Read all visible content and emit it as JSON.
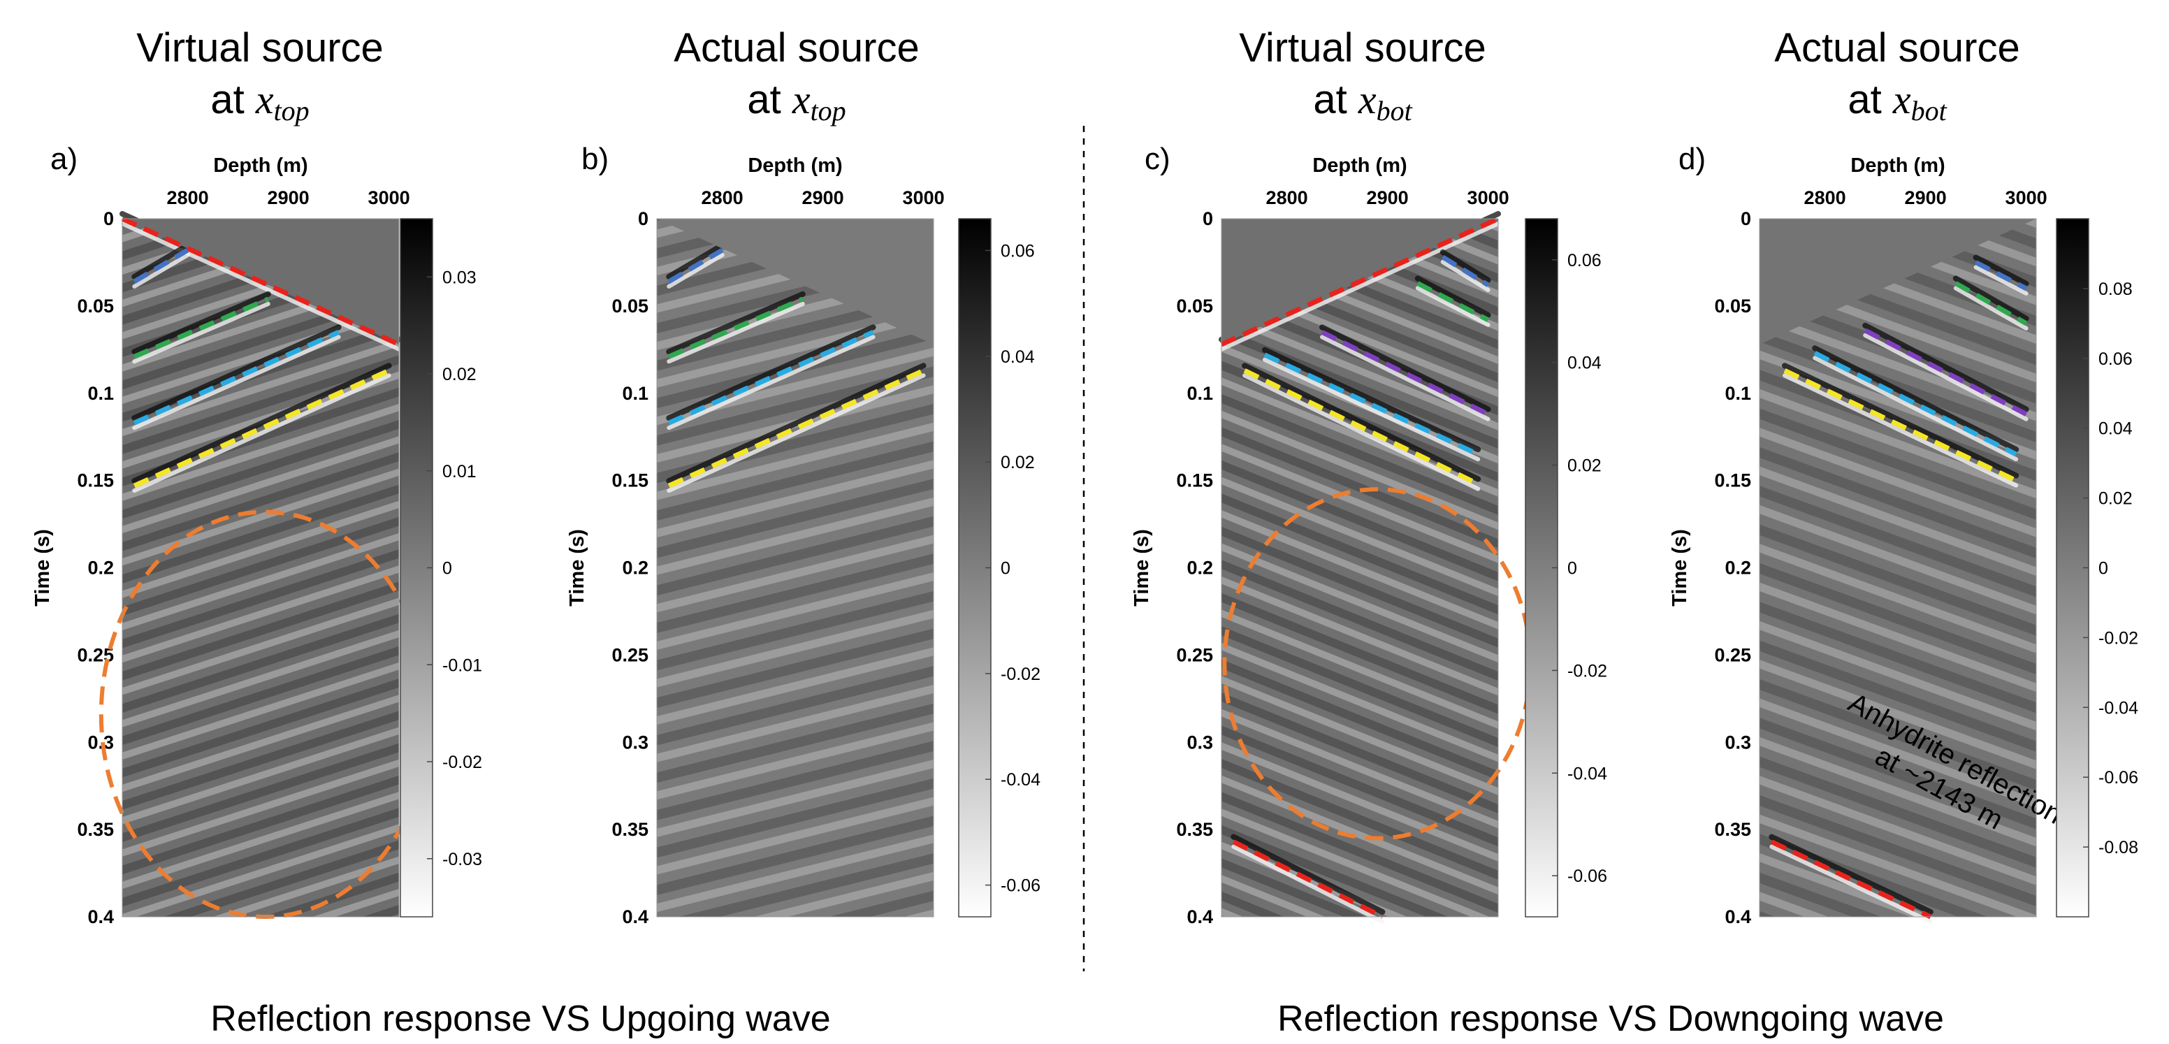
{
  "chart_data": [
    {
      "type": "heatmap",
      "panel_label": "a)",
      "title_line1": "Virtual source",
      "title_at": "at",
      "title_var": "x",
      "title_sub": "top",
      "xlabel": "Depth (m)",
      "ylabel": "Time (s)",
      "x_ticks": [
        2800,
        2900,
        3000
      ],
      "x_tick_labels": [
        "2800",
        "2900",
        "3000"
      ],
      "xlim": [
        2735,
        3010
      ],
      "y_ticks": [
        0,
        0.05,
        0.1,
        0.15,
        0.2,
        0.25,
        0.3,
        0.35,
        0.4
      ],
      "y_tick_labels": [
        "0",
        "0.05",
        "0.1",
        "0.15",
        "0.2",
        "0.25",
        "0.3",
        "0.35",
        "0.4"
      ],
      "ylim": [
        0,
        0.4
      ],
      "colorbar": {
        "range": [
          -0.036,
          0.036
        ],
        "ticks": [
          0.03,
          0.02,
          0.01,
          0,
          -0.01,
          -0.02,
          -0.03
        ],
        "tick_labels": [
          "0.03",
          "0.02",
          "0.01",
          "0",
          "-0.01",
          "-0.02",
          "-0.03"
        ],
        "colormap": "gray (white = negative, black = positive)"
      },
      "annotations": [
        {
          "kind": "dashed-line",
          "color": "#e8231b",
          "from": [
            2735,
            0.0
          ],
          "to": [
            3010,
            0.072
          ]
        },
        {
          "kind": "dashed-line",
          "color": "#4472c4",
          "from": [
            2747,
            0.036
          ],
          "to": [
            2800,
            0.018
          ]
        },
        {
          "kind": "dashed-line",
          "color": "#2fa84f",
          "from": [
            2747,
            0.079
          ],
          "to": [
            2880,
            0.046
          ]
        },
        {
          "kind": "dashed-line",
          "color": "#29abe2",
          "from": [
            2747,
            0.117
          ],
          "to": [
            2950,
            0.065
          ]
        },
        {
          "kind": "dashed-line",
          "color": "#f5e625",
          "from": [
            2747,
            0.153
          ],
          "to": [
            3000,
            0.087
          ]
        },
        {
          "kind": "dashed-ellipse",
          "color": "#ed7d31",
          "center": [
            2877,
            0.284
          ],
          "radius": [
            163,
            0.116
          ]
        }
      ]
    },
    {
      "type": "heatmap",
      "panel_label": "b)",
      "title_line1": "Actual source",
      "title_at": "at",
      "title_var": "x",
      "title_sub": "top",
      "xlabel": "Depth (m)",
      "ylabel": "Time (s)",
      "x_ticks": [
        2800,
        2900,
        3000
      ],
      "x_tick_labels": [
        "2800",
        "2900",
        "3000"
      ],
      "xlim": [
        2735,
        3010
      ],
      "y_ticks": [
        0,
        0.05,
        0.1,
        0.15,
        0.2,
        0.25,
        0.3,
        0.35,
        0.4
      ],
      "y_tick_labels": [
        "0",
        "0.05",
        "0.1",
        "0.15",
        "0.2",
        "0.25",
        "0.3",
        "0.35",
        "0.4"
      ],
      "ylim": [
        0,
        0.4
      ],
      "colorbar": {
        "range": [
          -0.066,
          0.066
        ],
        "ticks": [
          0.06,
          0.04,
          0.02,
          0,
          -0.02,
          -0.04,
          -0.06
        ],
        "tick_labels": [
          "0.06",
          "0.04",
          "0.02",
          "0",
          "-0.02",
          "-0.04",
          "-0.06"
        ],
        "colormap": "gray (white = negative, black = positive)"
      },
      "annotations": [
        {
          "kind": "dashed-line",
          "color": "#4472c4",
          "from": [
            2747,
            0.036
          ],
          "to": [
            2800,
            0.018
          ]
        },
        {
          "kind": "dashed-line",
          "color": "#2fa84f",
          "from": [
            2747,
            0.079
          ],
          "to": [
            2880,
            0.046
          ]
        },
        {
          "kind": "dashed-line",
          "color": "#29abe2",
          "from": [
            2747,
            0.117
          ],
          "to": [
            2950,
            0.065
          ]
        },
        {
          "kind": "dashed-line",
          "color": "#f5e625",
          "from": [
            2747,
            0.153
          ],
          "to": [
            3000,
            0.087
          ]
        }
      ]
    },
    {
      "type": "heatmap",
      "panel_label": "c)",
      "title_line1": "Virtual source",
      "title_at": "at",
      "title_var": "x",
      "title_sub": "bot",
      "xlabel": "Depth (m)",
      "ylabel": "Time (s)",
      "x_ticks": [
        2800,
        2900,
        3000
      ],
      "x_tick_labels": [
        "2800",
        "2900",
        "3000"
      ],
      "xlim": [
        2735,
        3010
      ],
      "y_ticks": [
        0,
        0.05,
        0.1,
        0.15,
        0.2,
        0.25,
        0.3,
        0.35,
        0.4
      ],
      "y_tick_labels": [
        "0",
        "0.05",
        "0.1",
        "0.15",
        "0.2",
        "0.25",
        "0.3",
        "0.35",
        "0.4"
      ],
      "ylim": [
        0,
        0.4
      ],
      "colorbar": {
        "range": [
          -0.068,
          0.068
        ],
        "ticks": [
          0.06,
          0.04,
          0.02,
          0,
          -0.02,
          -0.04,
          -0.06
        ],
        "tick_labels": [
          "0.06",
          "0.04",
          "0.02",
          "0",
          "-0.02",
          "-0.04",
          "-0.06"
        ],
        "colormap": "gray (white = negative, black = positive)"
      },
      "annotations": [
        {
          "kind": "dashed-line",
          "color": "#e8231b",
          "from": [
            2735,
            0.072
          ],
          "to": [
            3010,
            0.0
          ]
        },
        {
          "kind": "dashed-line",
          "color": "#4472c4",
          "from": [
            2955,
            0.022
          ],
          "to": [
            3000,
            0.038
          ]
        },
        {
          "kind": "dashed-line",
          "color": "#2fa84f",
          "from": [
            2930,
            0.037
          ],
          "to": [
            3000,
            0.058
          ]
        },
        {
          "kind": "dashed-line",
          "color": "#7f3fbf",
          "from": [
            2835,
            0.065
          ],
          "to": [
            3000,
            0.112
          ]
        },
        {
          "kind": "dashed-line",
          "color": "#29abe2",
          "from": [
            2778,
            0.078
          ],
          "to": [
            2990,
            0.135
          ]
        },
        {
          "kind": "dashed-line",
          "color": "#f5e625",
          "from": [
            2758,
            0.087
          ],
          "to": [
            2990,
            0.152
          ]
        },
        {
          "kind": "dashed-line",
          "color": "#e8231b",
          "from": [
            2747,
            0.357
          ],
          "to": [
            2895,
            0.4
          ]
        },
        {
          "kind": "dashed-ellipse",
          "color": "#ed7d31",
          "center": [
            2890,
            0.255
          ],
          "radius": [
            152,
            0.1
          ]
        }
      ]
    },
    {
      "type": "heatmap",
      "panel_label": "d)",
      "title_line1": "Actual source",
      "title_at": "at",
      "title_var": "x",
      "title_sub": "bot",
      "xlabel": "Depth (m)",
      "ylabel": "Time (s)",
      "x_ticks": [
        2800,
        2900,
        3000
      ],
      "x_tick_labels": [
        "2800",
        "2900",
        "3000"
      ],
      "xlim": [
        2735,
        3010
      ],
      "y_ticks": [
        0,
        0.05,
        0.1,
        0.15,
        0.2,
        0.25,
        0.3,
        0.35,
        0.4
      ],
      "y_tick_labels": [
        "0",
        "0.05",
        "0.1",
        "0.15",
        "0.2",
        "0.25",
        "0.3",
        "0.35",
        "0.4"
      ],
      "ylim": [
        0,
        0.4
      ],
      "colorbar": {
        "range": [
          -0.1,
          0.1
        ],
        "ticks": [
          0.08,
          0.06,
          0.04,
          0.02,
          0,
          -0.02,
          -0.04,
          -0.06,
          -0.08
        ],
        "tick_labels": [
          "0.08",
          "0.06",
          "0.04",
          "0.02",
          "0",
          "-0.02",
          "-0.04",
          "-0.06",
          "-0.08"
        ],
        "colormap": "gray (white = negative, black = positive)"
      },
      "annotations": [
        {
          "kind": "dashed-line",
          "color": "#4472c4",
          "from": [
            2950,
            0.025
          ],
          "to": [
            3000,
            0.04
          ]
        },
        {
          "kind": "dashed-line",
          "color": "#2fa84f",
          "from": [
            2930,
            0.037
          ],
          "to": [
            3000,
            0.06
          ]
        },
        {
          "kind": "dashed-line",
          "color": "#7f3fbf",
          "from": [
            2840,
            0.064
          ],
          "to": [
            3000,
            0.112
          ]
        },
        {
          "kind": "dashed-line",
          "color": "#29abe2",
          "from": [
            2790,
            0.077
          ],
          "to": [
            2990,
            0.135
          ]
        },
        {
          "kind": "dashed-line",
          "color": "#f5e625",
          "from": [
            2760,
            0.087
          ],
          "to": [
            2990,
            0.15
          ]
        },
        {
          "kind": "dashed-line",
          "color": "#e8231b",
          "from": [
            2747,
            0.357
          ],
          "to": [
            2905,
            0.4
          ]
        },
        {
          "kind": "text",
          "text_lines": [
            "Anhydrite reflection",
            "at ~2143 m"
          ],
          "anchor": [
            2905,
            0.335
          ]
        }
      ]
    }
  ],
  "captions": {
    "left": "Reflection response VS Upgoing wave",
    "right": "Reflection response VS Downgoing wave"
  },
  "colors": {
    "red": "#e8231b",
    "blue": "#4472c4",
    "green": "#2fa84f",
    "cyan": "#29abe2",
    "yellow": "#f5e625",
    "purple": "#7f3fbf",
    "orange": "#ed7d31"
  }
}
